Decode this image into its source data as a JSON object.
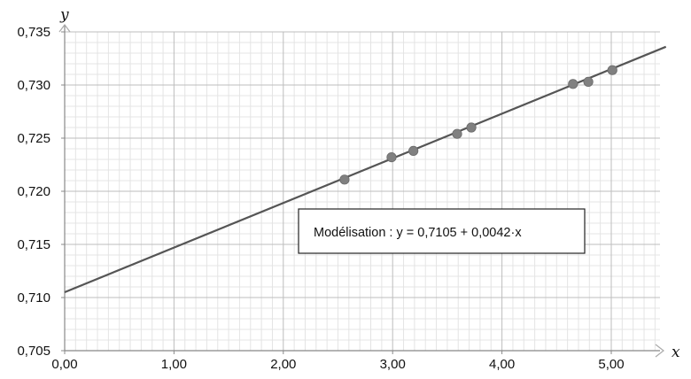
{
  "chart_data": {
    "type": "scatter",
    "xlabel": "x",
    "ylabel": "y",
    "xlim": [
      0,
      5.5
    ],
    "ylim": [
      0.705,
      0.735
    ],
    "x_ticks": [
      0,
      1,
      2,
      3,
      4,
      5
    ],
    "x_tick_labels": [
      "0,00",
      "1,00",
      "2,00",
      "3,00",
      "4,00",
      "5,00"
    ],
    "y_ticks": [
      0.705,
      0.71,
      0.715,
      0.72,
      0.725,
      0.73,
      0.735
    ],
    "y_tick_labels": [
      "0,705",
      "0,710",
      "0,715",
      "0,720",
      "0,725",
      "0,730",
      "0,735"
    ],
    "grid": true,
    "points": [
      {
        "x": 2.56,
        "y": 0.7211
      },
      {
        "x": 2.99,
        "y": 0.7232
      },
      {
        "x": 3.19,
        "y": 0.7238
      },
      {
        "x": 3.59,
        "y": 0.7254
      },
      {
        "x": 3.72,
        "y": 0.726
      },
      {
        "x": 4.65,
        "y": 0.7301
      },
      {
        "x": 4.79,
        "y": 0.7303
      },
      {
        "x": 5.01,
        "y": 0.7314
      }
    ],
    "fit": {
      "intercept": 0.7105,
      "slope": 0.0042
    },
    "annotation": "Modélisation :  y = 0,7105 + 0,0042·x",
    "colors": {
      "grid_major": "#bdbdbd",
      "grid_minor": "#e4e4e4",
      "line": "#555555",
      "points": "#808080",
      "axis": "#888888"
    }
  }
}
